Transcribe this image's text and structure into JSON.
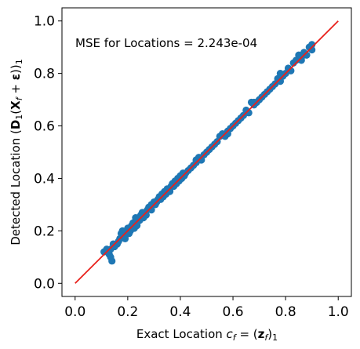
{
  "chart_data": {
    "type": "scatter",
    "title": "",
    "xlabel": "Exact Location c_f = (z_f)_1",
    "ylabel": "Detected Location (D_1(X_f + ε))_1",
    "xlim": [
      -0.05,
      1.05
    ],
    "ylim": [
      -0.05,
      1.05
    ],
    "xticks": [
      "0.0",
      "0.2",
      "0.4",
      "0.6",
      "0.8",
      "1.0"
    ],
    "yticks": [
      "0.0",
      "0.2",
      "0.4",
      "0.6",
      "0.8",
      "1.0"
    ],
    "annotation": "MSE for Locations = 2.243e-04",
    "grid": false,
    "colors": {
      "points": "#1f77b4",
      "line": "#e8211b"
    },
    "reference_line": {
      "x": [
        0.0,
        1.0
      ],
      "y": [
        0.0,
        1.0
      ]
    },
    "series": [
      {
        "x": [
          0.11,
          0.12,
          0.125,
          0.13,
          0.135,
          0.14,
          0.145,
          0.15,
          0.16,
          0.165,
          0.17,
          0.175,
          0.18,
          0.185,
          0.19,
          0.195,
          0.2,
          0.205,
          0.21,
          0.215,
          0.22,
          0.225,
          0.23,
          0.235,
          0.24,
          0.245,
          0.25,
          0.255,
          0.26,
          0.265,
          0.27,
          0.275,
          0.28,
          0.29,
          0.3,
          0.305,
          0.31,
          0.315,
          0.32,
          0.325,
          0.33,
          0.335,
          0.34,
          0.345,
          0.35,
          0.36,
          0.365,
          0.37,
          0.375,
          0.38,
          0.385,
          0.39,
          0.395,
          0.4,
          0.405,
          0.41,
          0.415,
          0.42,
          0.43,
          0.44,
          0.45,
          0.46,
          0.47,
          0.48,
          0.49,
          0.5,
          0.51,
          0.52,
          0.53,
          0.54,
          0.55,
          0.56,
          0.57,
          0.58,
          0.59,
          0.6,
          0.61,
          0.62,
          0.63,
          0.64,
          0.65,
          0.66,
          0.67,
          0.68,
          0.69,
          0.7,
          0.71,
          0.72,
          0.73,
          0.74,
          0.75,
          0.76,
          0.77,
          0.78,
          0.79,
          0.8,
          0.81,
          0.82,
          0.83,
          0.84,
          0.85,
          0.86,
          0.87,
          0.88,
          0.89,
          0.9,
          0.9,
          0.135,
          0.19,
          0.23,
          0.29,
          0.36,
          0.46,
          0.58,
          0.68,
          0.78,
          0.86
        ],
        "y": [
          0.12,
          0.13,
          0.12,
          0.11,
          0.13,
          0.085,
          0.15,
          0.14,
          0.15,
          0.16,
          0.17,
          0.19,
          0.2,
          0.18,
          0.17,
          0.2,
          0.21,
          0.19,
          0.2,
          0.22,
          0.23,
          0.21,
          0.24,
          0.22,
          0.25,
          0.24,
          0.26,
          0.27,
          0.25,
          0.27,
          0.26,
          0.28,
          0.29,
          0.28,
          0.31,
          0.3,
          0.31,
          0.32,
          0.33,
          0.32,
          0.34,
          0.33,
          0.35,
          0.34,
          0.36,
          0.36,
          0.37,
          0.38,
          0.37,
          0.39,
          0.38,
          0.4,
          0.39,
          0.41,
          0.4,
          0.42,
          0.41,
          0.42,
          0.43,
          0.44,
          0.45,
          0.46,
          0.48,
          0.47,
          0.49,
          0.5,
          0.51,
          0.52,
          0.53,
          0.54,
          0.56,
          0.57,
          0.56,
          0.58,
          0.59,
          0.6,
          0.61,
          0.62,
          0.63,
          0.64,
          0.66,
          0.65,
          0.69,
          0.68,
          0.69,
          0.7,
          0.71,
          0.72,
          0.73,
          0.74,
          0.75,
          0.76,
          0.78,
          0.8,
          0.79,
          0.8,
          0.82,
          0.81,
          0.84,
          0.85,
          0.87,
          0.86,
          0.88,
          0.87,
          0.9,
          0.91,
          0.89,
          0.1,
          0.18,
          0.25,
          0.3,
          0.35,
          0.47,
          0.57,
          0.69,
          0.77,
          0.85
        ]
      }
    ]
  }
}
